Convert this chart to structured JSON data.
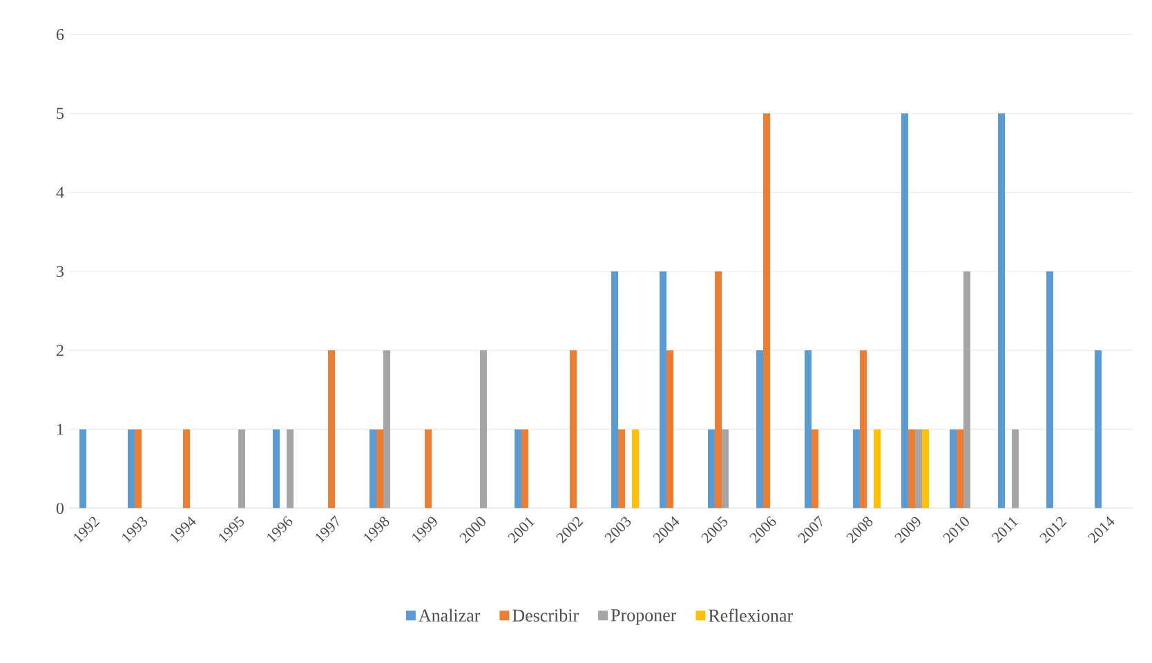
{
  "chart_data": {
    "type": "bar",
    "categories": [
      "1992",
      "1993",
      "1994",
      "1995",
      "1996",
      "1997",
      "1998",
      "1999",
      "2000",
      "2001",
      "2002",
      "2003",
      "2004",
      "2005",
      "2006",
      "2007",
      "2008",
      "2009",
      "2010",
      "2011",
      "2012",
      "2014"
    ],
    "series": [
      {
        "name": "Analizar",
        "color": "#5b9bd5",
        "values": [
          1,
          1,
          0,
          0,
          1,
          0,
          1,
          0,
          0,
          1,
          0,
          3,
          3,
          1,
          2,
          2,
          1,
          5,
          1,
          5,
          3,
          2
        ]
      },
      {
        "name": "Describir",
        "color": "#ed7d31",
        "values": [
          0,
          1,
          1,
          0,
          0,
          2,
          1,
          1,
          0,
          1,
          2,
          1,
          2,
          3,
          5,
          1,
          2,
          1,
          1,
          0,
          0,
          0
        ]
      },
      {
        "name": "Proponer",
        "color": "#a5a5a5",
        "values": [
          0,
          0,
          0,
          1,
          1,
          0,
          2,
          0,
          2,
          0,
          0,
          0,
          0,
          1,
          0,
          0,
          0,
          1,
          3,
          1,
          0,
          0
        ]
      },
      {
        "name": "Reflexionar",
        "color": "#ffc000",
        "values": [
          0,
          0,
          0,
          0,
          0,
          0,
          0,
          0,
          0,
          0,
          0,
          1,
          0,
          0,
          0,
          0,
          1,
          1,
          0,
          0,
          0,
          0
        ]
      }
    ],
    "ylim": [
      0,
      6
    ],
    "yticks": [
      0,
      1,
      2,
      3,
      4,
      5,
      6
    ],
    "grid": "y",
    "legend": "bottom"
  }
}
